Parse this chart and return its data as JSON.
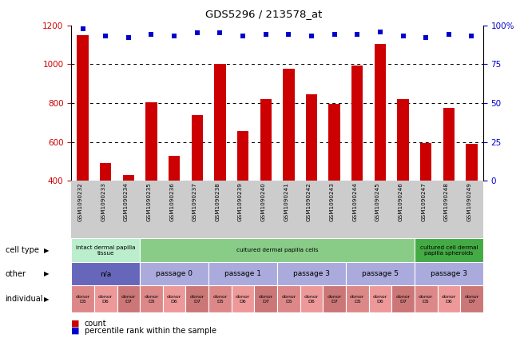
{
  "title": "GDS5296 / 213578_at",
  "samples": [
    "GSM1090232",
    "GSM1090233",
    "GSM1090234",
    "GSM1090235",
    "GSM1090236",
    "GSM1090237",
    "GSM1090238",
    "GSM1090239",
    "GSM1090240",
    "GSM1090241",
    "GSM1090242",
    "GSM1090243",
    "GSM1090244",
    "GSM1090245",
    "GSM1090246",
    "GSM1090247",
    "GSM1090248",
    "GSM1090249"
  ],
  "counts": [
    1150,
    490,
    430,
    805,
    530,
    740,
    1000,
    655,
    820,
    975,
    845,
    795,
    995,
    1105,
    820,
    595,
    775,
    590
  ],
  "percentiles": [
    98,
    93,
    92,
    94,
    93,
    95,
    95,
    93,
    94,
    94,
    93,
    94,
    94,
    96,
    93,
    92,
    94,
    93
  ],
  "ylim_left": [
    400,
    1200
  ],
  "ylim_right": [
    0,
    100
  ],
  "yticks_left": [
    400,
    600,
    800,
    1000,
    1200
  ],
  "yticks_right": [
    0,
    25,
    50,
    75,
    100
  ],
  "bar_color": "#cc0000",
  "dot_color": "#0000cc",
  "cell_type_groups": [
    {
      "label": "intact dermal papilla\ntissue",
      "start": 0,
      "end": 3,
      "color": "#bbeecc"
    },
    {
      "label": "cultured dermal papilla cells",
      "start": 3,
      "end": 15,
      "color": "#88cc88"
    },
    {
      "label": "cultured cell dermal\npapilla spheroids",
      "start": 15,
      "end": 18,
      "color": "#44aa44"
    }
  ],
  "other_groups": [
    {
      "label": "n/a",
      "start": 0,
      "end": 3,
      "color": "#6666bb"
    },
    {
      "label": "passage 0",
      "start": 3,
      "end": 6,
      "color": "#aaaadd"
    },
    {
      "label": "passage 1",
      "start": 6,
      "end": 9,
      "color": "#aaaadd"
    },
    {
      "label": "passage 3",
      "start": 9,
      "end": 12,
      "color": "#aaaadd"
    },
    {
      "label": "passage 5",
      "start": 12,
      "end": 15,
      "color": "#aaaadd"
    },
    {
      "label": "passage 3",
      "start": 15,
      "end": 18,
      "color": "#aaaadd"
    }
  ],
  "donors": [
    "donor\nD5",
    "donor\nD6",
    "donor\nD7",
    "donor\nD5",
    "donor\nD6",
    "donor\nD7",
    "donor\nD5",
    "donor\nD6",
    "donor\nD7",
    "donor\nD5",
    "donor\nD6",
    "donor\nD7",
    "donor\nD5",
    "donor\nD6",
    "donor\nD7",
    "donor\nD5",
    "donor\nD6",
    "donor\nD7"
  ],
  "donor_colors": [
    "#dd8888",
    "#ee9999",
    "#cc7777",
    "#dd8888",
    "#ee9999",
    "#cc7777",
    "#dd8888",
    "#ee9999",
    "#cc7777",
    "#dd8888",
    "#ee9999",
    "#cc7777",
    "#dd8888",
    "#ee9999",
    "#cc7777",
    "#dd8888",
    "#ee9999",
    "#cc7777"
  ],
  "chart_bg": "#cccccc",
  "bg_color": "#ffffff",
  "axis_color_left": "#cc0000",
  "axis_color_right": "#0000cc",
  "legend_count_color": "#cc0000",
  "legend_dot_color": "#0000cc"
}
